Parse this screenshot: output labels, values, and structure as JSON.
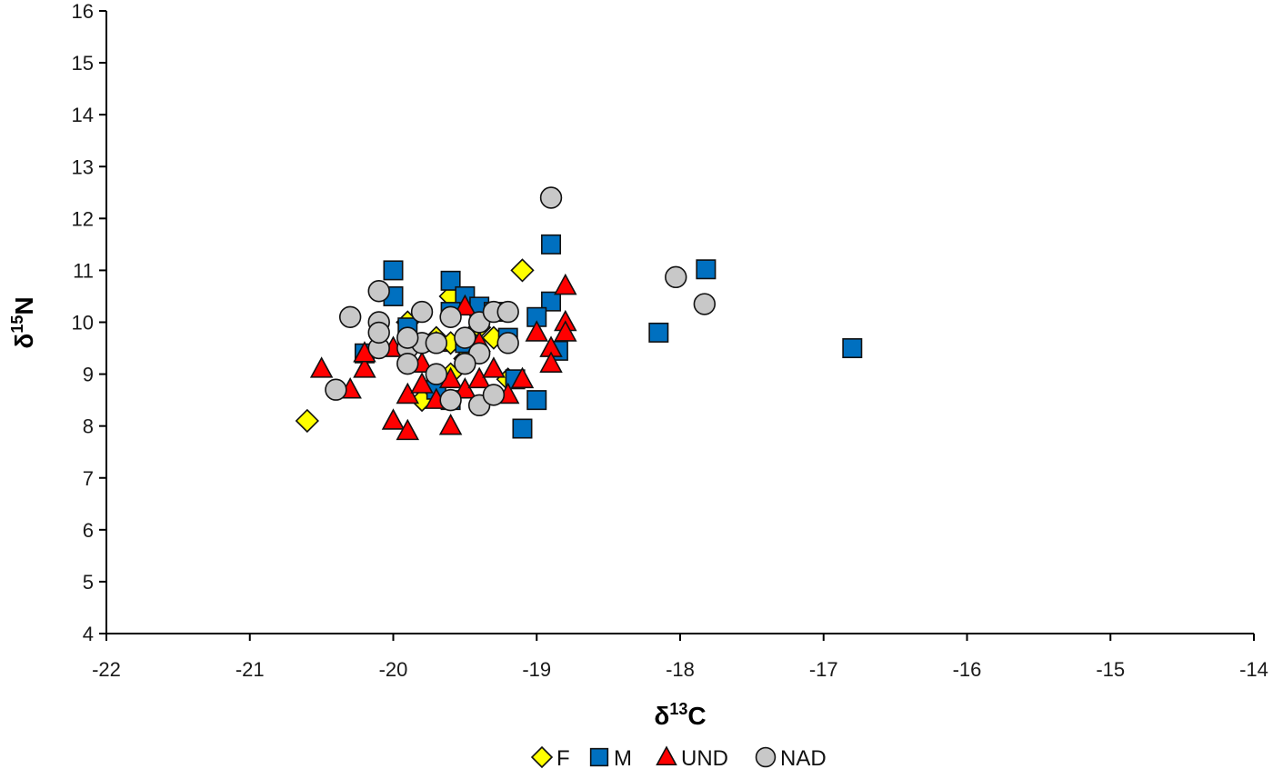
{
  "chart_data": {
    "type": "scatter",
    "title": "",
    "xlabel": {
      "base": "δ",
      "sup": "13",
      "rest": "C"
    },
    "ylabel": {
      "base": "δ",
      "sup": "15",
      "rest": "N"
    },
    "xlim": [
      -22,
      -14
    ],
    "ylim": [
      4,
      16
    ],
    "xticks": [
      -22,
      -21,
      -20,
      -19,
      -18,
      -17,
      -16,
      -15,
      -14
    ],
    "yticks": [
      4,
      5,
      6,
      7,
      8,
      9,
      10,
      11,
      12,
      13,
      14,
      15,
      16
    ],
    "xtick_labels": [
      "-22",
      "-21",
      "-20",
      "-19",
      "-18",
      "-17",
      "-16",
      "-15",
      "-14"
    ],
    "ytick_labels": [
      "4",
      "5",
      "6",
      "7",
      "8",
      "9",
      "10",
      "11",
      "12",
      "13",
      "14",
      "15",
      "16"
    ],
    "grid": false,
    "legend_position": "bottom",
    "series": [
      {
        "name": "F",
        "marker": "diamond",
        "color": "#ffff00",
        "points": [
          [
            -20.6,
            8.1
          ],
          [
            -19.1,
            11.0
          ],
          [
            -19.6,
            10.5
          ],
          [
            -19.9,
            10.0
          ],
          [
            -19.7,
            9.7
          ],
          [
            -19.6,
            9.6
          ],
          [
            -19.4,
            9.9
          ],
          [
            -19.3,
            9.7
          ],
          [
            -19.5,
            9.3
          ],
          [
            -19.8,
            8.5
          ],
          [
            -19.2,
            8.9
          ],
          [
            -19.6,
            9.0
          ]
        ]
      },
      {
        "name": "M",
        "marker": "square",
        "color": "#0070c0",
        "points": [
          [
            -20.0,
            11.0
          ],
          [
            -20.0,
            10.5
          ],
          [
            -19.6,
            10.8
          ],
          [
            -19.5,
            10.5
          ],
          [
            -19.4,
            10.3
          ],
          [
            -19.3,
            10.2
          ],
          [
            -18.9,
            11.5
          ],
          [
            -18.9,
            10.4
          ],
          [
            -19.0,
            10.1
          ],
          [
            -18.85,
            9.45
          ],
          [
            -20.2,
            9.4
          ],
          [
            -19.9,
            9.9
          ],
          [
            -19.6,
            10.2
          ],
          [
            -19.2,
            9.7
          ],
          [
            -19.5,
            9.6
          ],
          [
            -19.15,
            8.9
          ],
          [
            -19.0,
            8.5
          ],
          [
            -19.1,
            7.95
          ],
          [
            -19.6,
            8.5
          ],
          [
            -19.7,
            8.7
          ],
          [
            -18.15,
            9.8
          ],
          [
            -17.82,
            11.02
          ],
          [
            -16.8,
            9.5
          ]
        ]
      },
      {
        "name": "UND",
        "marker": "triangle",
        "color": "#ff0000",
        "points": [
          [
            -20.5,
            9.1
          ],
          [
            -20.3,
            8.7
          ],
          [
            -20.2,
            9.1
          ],
          [
            -20.2,
            9.4
          ],
          [
            -20.0,
            9.5
          ],
          [
            -20.0,
            8.1
          ],
          [
            -19.9,
            7.9
          ],
          [
            -19.9,
            8.6
          ],
          [
            -19.8,
            8.8
          ],
          [
            -19.8,
            9.2
          ],
          [
            -19.7,
            8.5
          ],
          [
            -19.6,
            8.0
          ],
          [
            -19.6,
            8.9
          ],
          [
            -19.5,
            8.7
          ],
          [
            -19.5,
            10.3
          ],
          [
            -19.4,
            8.9
          ],
          [
            -19.3,
            9.1
          ],
          [
            -19.2,
            8.6
          ],
          [
            -19.1,
            8.9
          ],
          [
            -19.0,
            9.8
          ],
          [
            -18.9,
            9.5
          ],
          [
            -18.9,
            9.2
          ],
          [
            -18.8,
            10.7
          ],
          [
            -18.8,
            10.0
          ],
          [
            -18.8,
            9.8
          ],
          [
            -19.7,
            9.6
          ],
          [
            -19.4,
            9.6
          ]
        ]
      },
      {
        "name": "NAD",
        "marker": "circle",
        "color": "#c8c8c8",
        "points": [
          [
            -18.9,
            12.4
          ],
          [
            -20.1,
            10.6
          ],
          [
            -20.3,
            10.1
          ],
          [
            -20.1,
            10.0
          ],
          [
            -19.8,
            10.2
          ],
          [
            -19.6,
            10.1
          ],
          [
            -19.4,
            10.0
          ],
          [
            -19.3,
            10.2
          ],
          [
            -19.2,
            10.2
          ],
          [
            -20.1,
            9.5
          ],
          [
            -19.9,
            9.5
          ],
          [
            -19.8,
            9.6
          ],
          [
            -19.7,
            9.6
          ],
          [
            -19.5,
            9.7
          ],
          [
            -19.4,
            9.4
          ],
          [
            -19.2,
            9.6
          ],
          [
            -19.9,
            9.2
          ],
          [
            -19.7,
            9.0
          ],
          [
            -19.5,
            9.2
          ],
          [
            -19.6,
            8.5
          ],
          [
            -19.4,
            8.4
          ],
          [
            -19.3,
            8.6
          ],
          [
            -20.4,
            8.7
          ],
          [
            -18.03,
            10.87
          ],
          [
            -17.83,
            10.35
          ],
          [
            -19.9,
            9.7
          ],
          [
            -20.1,
            9.8
          ]
        ]
      }
    ]
  }
}
